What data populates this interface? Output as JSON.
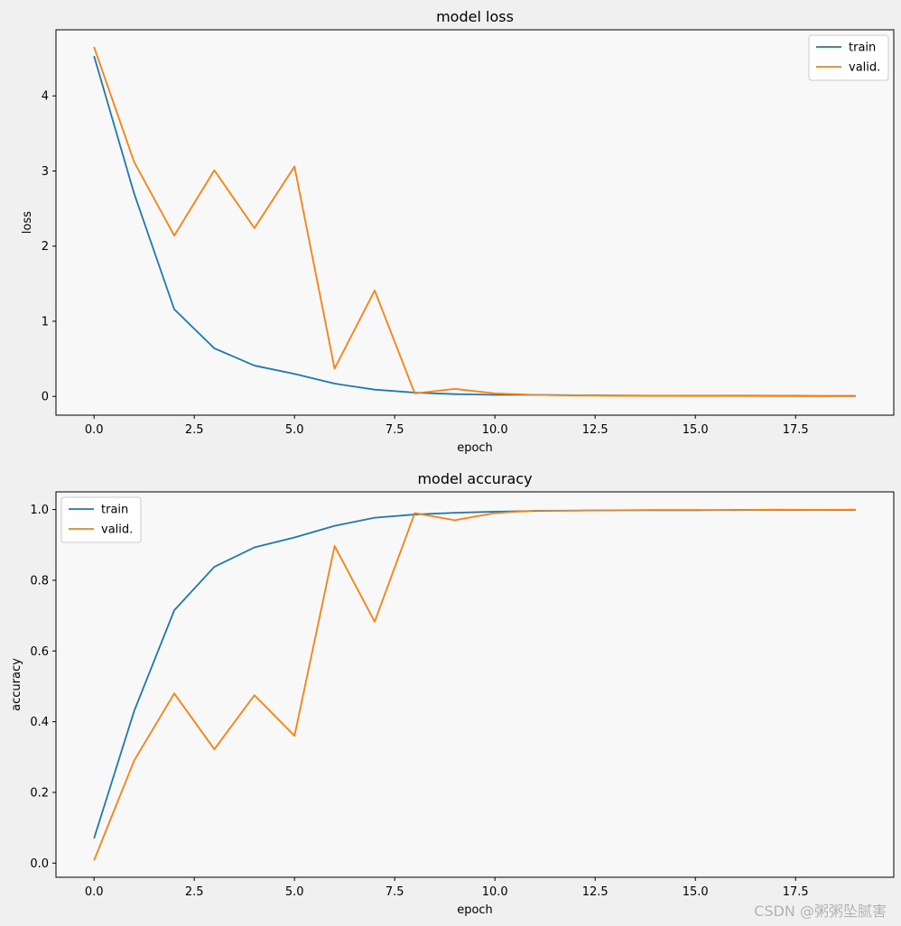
{
  "chart_data": [
    {
      "type": "line",
      "title": "model loss",
      "xlabel": "epoch",
      "ylabel": "loss",
      "x": [
        0,
        1,
        2,
        3,
        4,
        5,
        6,
        7,
        8,
        9,
        10,
        11,
        12,
        13,
        14,
        15,
        16,
        17,
        18,
        19
      ],
      "xlim": [
        -0.95,
        19.95
      ],
      "ylim": [
        -0.25,
        4.88
      ],
      "xticks": [
        0.0,
        2.5,
        5.0,
        7.5,
        10.0,
        12.5,
        15.0,
        17.5
      ],
      "xtick_labels": [
        "0.0",
        "2.5",
        "5.0",
        "7.5",
        "10.0",
        "12.5",
        "15.0",
        "17.5"
      ],
      "yticks": [
        0,
        1,
        2,
        3,
        4
      ],
      "ytick_labels": [
        "0",
        "1",
        "2",
        "3",
        "4"
      ],
      "grid": false,
      "legend": "upper right",
      "series": [
        {
          "name": "train",
          "color": "#1f77b4",
          "values": [
            4.53,
            2.7,
            1.16,
            0.64,
            0.41,
            0.3,
            0.17,
            0.09,
            0.05,
            0.03,
            0.02,
            0.02,
            0.015,
            0.012,
            0.01,
            0.01,
            0.009,
            0.008,
            0.007,
            0.006
          ]
        },
        {
          "name": "valid.",
          "color": "#ff7f0e",
          "values": [
            4.65,
            3.12,
            2.14,
            3.01,
            2.24,
            3.06,
            0.37,
            1.41,
            0.04,
            0.1,
            0.04,
            0.02,
            0.015,
            0.01,
            0.008,
            0.006,
            0.005,
            0.004,
            0.003,
            0.002
          ]
        }
      ]
    },
    {
      "type": "line",
      "title": "model accuracy",
      "xlabel": "epoch",
      "ylabel": "accuracy",
      "x": [
        0,
        1,
        2,
        3,
        4,
        5,
        6,
        7,
        8,
        9,
        10,
        11,
        12,
        13,
        14,
        15,
        16,
        17,
        18,
        19
      ],
      "xlim": [
        -0.95,
        19.95
      ],
      "ylim": [
        -0.04,
        1.05
      ],
      "xticks": [
        0.0,
        2.5,
        5.0,
        7.5,
        10.0,
        12.5,
        15.0,
        17.5
      ],
      "xtick_labels": [
        "0.0",
        "2.5",
        "5.0",
        "7.5",
        "10.0",
        "12.5",
        "15.0",
        "17.5"
      ],
      "yticks": [
        0.0,
        0.2,
        0.4,
        0.6,
        0.8,
        1.0
      ],
      "ytick_labels": [
        "0.0",
        "0.2",
        "0.4",
        "0.6",
        "0.8",
        "1.0"
      ],
      "grid": false,
      "legend": "upper left",
      "series": [
        {
          "name": "train",
          "color": "#1f77b4",
          "values": [
            0.07,
            0.43,
            0.715,
            0.838,
            0.893,
            0.921,
            0.954,
            0.977,
            0.986,
            0.991,
            0.994,
            0.996,
            0.997,
            0.998,
            0.998,
            0.998,
            0.999,
            0.999,
            0.999,
            0.999
          ]
        },
        {
          "name": "valid.",
          "color": "#ff7f0e",
          "values": [
            0.008,
            0.29,
            0.48,
            0.322,
            0.475,
            0.36,
            0.897,
            0.683,
            0.99,
            0.97,
            0.99,
            0.997,
            0.997,
            0.998,
            0.999,
            0.999,
            0.998,
            1.0,
            0.999,
            1.0
          ]
        }
      ]
    }
  ],
  "watermark": "CSDN @粥粥坠腻害"
}
